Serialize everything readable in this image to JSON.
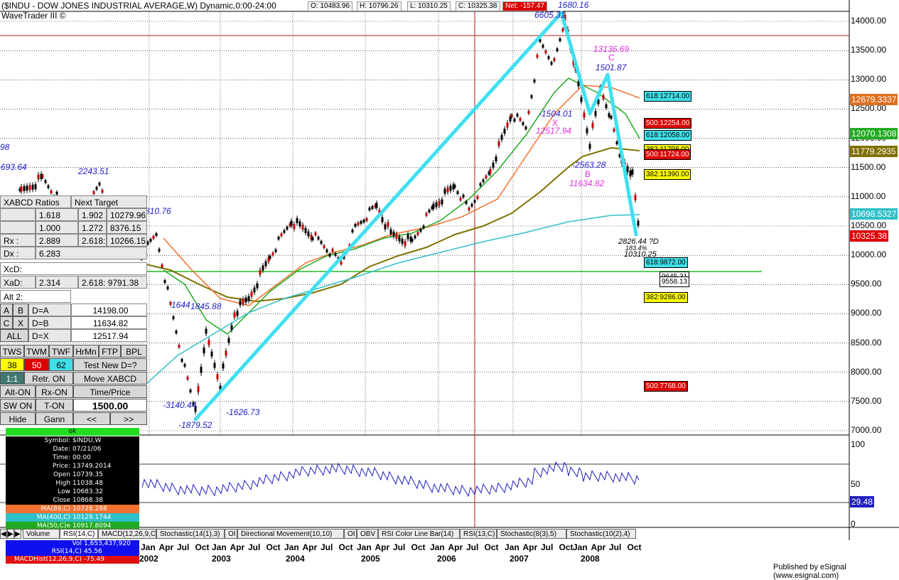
{
  "header": {
    "title": "($INDU - DOW JONES INDUSTRIAL AVERAGE,W) Dynamic,0:00-24:00",
    "subtitle": "WaveTrader III ©",
    "open": "O: 10483.96",
    "high": "H: 10796.26",
    "low": "L: 10310.25",
    "close": "C: 10325.38",
    "net": "Net: -157.47"
  },
  "y_axis": {
    "ticks": [
      "14000.00",
      "13500.00",
      "13000.00",
      "12500.00",
      "12000.00",
      "11500.00",
      "11000.00",
      "10500.00",
      "10000.00",
      "9500.00",
      "9000.00",
      "8500.00",
      "8000.00",
      "7500.00",
      "7000.00"
    ],
    "price_tags": [
      {
        "text": "12679.3337",
        "bg": "#e07020",
        "fg": "#ffffff"
      },
      {
        "text": "12070.1308",
        "bg": "#22aa22",
        "fg": "#ffffff"
      },
      {
        "text": "11779.2935",
        "bg": "#807000",
        "fg": "#ffffff"
      },
      {
        "text": "10698.5327",
        "bg": "#30c0c8",
        "fg": "#ffffff"
      },
      {
        "text": "10325.38",
        "bg": "#dd0000",
        "fg": "#ffffff"
      }
    ]
  },
  "rsi_axis": {
    "ticks": [
      "100",
      "50",
      "0"
    ],
    "value": "29.48"
  },
  "fib_tags": [
    {
      "text": "618:12714.00",
      "bg": "#40e0e8"
    },
    {
      "text": "500:12254.00",
      "bg": "#dd0000"
    },
    {
      "text": "618:12058.00",
      "bg": "#40e0e8"
    },
    {
      "text": "382:11798.00",
      "bg": "#ffff00"
    },
    {
      "text": "500:11724.00",
      "bg": "#dd0000"
    },
    {
      "text": "382:11390.00",
      "bg": "#ffff00"
    },
    {
      "text": "618:9872.00",
      "bg": "#40e0e8"
    },
    {
      "text": "9645.31",
      "bg": "#ffffff"
    },
    {
      "text": "9558.13",
      "bg": "#ffffff"
    },
    {
      "text": "382:9286.00",
      "bg": "#ffff00"
    },
    {
      "text": "500:7768.00",
      "bg": "#dd0000"
    }
  ],
  "annotations": {
    "peak_value": "1680.16",
    "peak_label": "6605.31",
    "c_value": "13136.69",
    "c_letter": "C",
    "c_swing": "1501.87",
    "x_swing": "-1504.01",
    "x_letter": "X",
    "x_value": "12517.94",
    "b_swing": "-2563.28",
    "b_letter": "B",
    "b_value": "11634.82",
    "d_swing": "2826.44 ?D",
    "d_pct": "183.4%",
    "d_value": "10310.25",
    "left_top": "98",
    "left_high": "693.64",
    "h_2243": "2243.51",
    "h_810": "810.76",
    "l_1644": "1644",
    "l_1845": "1845.88",
    "l_3140": "-3140.44",
    "l_1626": "-1626.73",
    "l_1879": "-1879.52"
  },
  "panel": {
    "title_row": {
      "ratios": "XABCD Ratios",
      "next": "Next Target"
    },
    "rows": [
      {
        "a": "",
        "b": "1.618",
        "c": "1.902",
        "d": "10279.96"
      },
      {
        "a": "",
        "b": "1.000",
        "c": "1.272",
        "d": "8376.15"
      },
      {
        "a": "Rx :",
        "b": "2.889",
        "c": "2.618:",
        "d": "10266.15"
      },
      {
        "a": "Dx :",
        "b": "6.283",
        "c": "",
        "d": ""
      }
    ],
    "xcd_label": "XcD:",
    "xad_label": "XaD:",
    "xad_value": "2.314",
    "xad_target": "2.618: 9791.38",
    "alt_label": "Alt 2:",
    "alt_rows": [
      {
        "l1": "A",
        "l2": "B",
        "eq": "D=A",
        "v": "14198.00"
      },
      {
        "l1": "C",
        "l2": "X",
        "eq": "D=B",
        "v": "11634.82"
      },
      {
        "l1": "ALL",
        "l2": "",
        "eq": "D=X",
        "v": "12517.94"
      }
    ],
    "tabs": [
      "TWS",
      "TWM",
      "TWF",
      "HrMn",
      "FTP",
      "BPL"
    ],
    "counts": [
      {
        "v": "38",
        "bg": "#ffff00",
        "fg": "#000000"
      },
      {
        "v": "50",
        "bg": "#dd0000",
        "fg": "#ffffff"
      },
      {
        "v": "62",
        "bg": "#40e0e8",
        "fg": "#000000"
      }
    ],
    "test_new": "Test New D=?",
    "ratio_11": "1:1",
    "retr_on": "Retr. ON",
    "move_xabcd": "Move XABCD",
    "alt_on": "Alt-ON",
    "rx_on": "Rx-ON",
    "time_price": "Time/Price",
    "sw_on": "SW ON",
    "t_on": "T-ON",
    "amount": "1500.00",
    "hide": "Hide",
    "gann": "Gann",
    "prev": "<<",
    "next": ">>"
  },
  "info_box": {
    "status": "ok",
    "rows": [
      {
        "k": "Symbol:",
        "v": "$INDU,W"
      },
      {
        "k": "Date:",
        "v": "07/21/06"
      },
      {
        "k": "Time:",
        "v": "00:00"
      },
      {
        "k": "Price:",
        "v": "13749.2014"
      },
      {
        "k": "Open",
        "v": "10739.35"
      },
      {
        "k": "High",
        "v": "11038.48"
      },
      {
        "k": "Low",
        "v": "10683.32"
      },
      {
        "k": "Close",
        "v": "10868.38"
      }
    ],
    "ma_rows": [
      {
        "k": "MA(89,C)",
        "v": "10728.288",
        "bg": "#f07030"
      },
      {
        "k": "MA(400,C)",
        "v": "10129.1744",
        "bg": "#30c0c8"
      },
      {
        "k": "MA(50,C)e",
        "v": "10917.8094",
        "bg": "#22aa22"
      }
    ],
    "bottom_rows": [
      {
        "k": "Vol",
        "v": "1,653,437,920"
      },
      {
        "k": "RSI(14,C)",
        "v": "45.56"
      },
      {
        "k": "MACDHist(12,26,9,C)",
        "v": "-75.49"
      }
    ]
  },
  "tabs": [
    "Volume",
    "RSI(14,C)",
    "MACD(12,26,9,C)",
    "Stochastic(14(1),3)",
    "OI",
    "Directional Movement(10,10)",
    "OI",
    "OBV",
    "RSI Color Line Bar(14)",
    "RSI(13,C)",
    "Stochastic(8(3),5)",
    "Stochastic(10(2),4)"
  ],
  "x_axis": {
    "months": [
      "Jan",
      "Apr",
      "Jul",
      "Oct"
    ],
    "years": [
      "2002",
      "2003",
      "2004",
      "2005",
      "2006",
      "2007",
      "2008"
    ]
  },
  "footer": "Published by eSignal (www.esignal.com)",
  "colors": {
    "pattern_line": "#40e0f0",
    "ma_orange": "#f07030",
    "ma_green": "#22aa22",
    "ma_olive": "#807000",
    "ma_cyan": "#30c0c8",
    "rsi_line": "#2020c0",
    "grid": "#000000",
    "hline_red": "#aa2020",
    "hline_green": "#22bb22"
  }
}
